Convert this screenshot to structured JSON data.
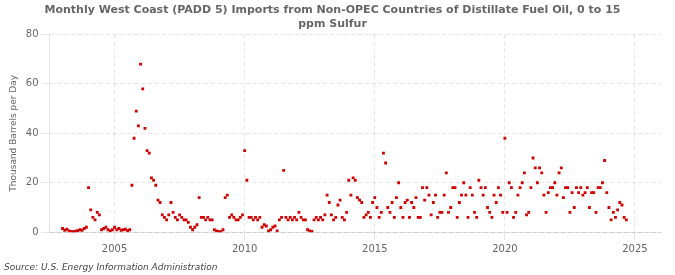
{
  "chart_data": {
    "type": "scatter",
    "title": "Monthly West Coast (PADD 5) Imports from Non-OPEC Countries of Distillate Fuel Oil, 0 to 15\nppm Sulfur",
    "y_label": "Thousand Barrels per Day",
    "source": "Source: U.S. Energy Information Administration",
    "color": "#cc0000",
    "marker": "square",
    "grid": true,
    "xlim": [
      2002.5,
      2026.0
    ],
    "xticks": [
      2005,
      2010,
      2015,
      2020,
      2025
    ],
    "ylim": [
      0,
      80
    ],
    "yticks": [
      0,
      20,
      40,
      60,
      80
    ],
    "x": [
      2003.0,
      2003.083,
      2003.167,
      2003.25,
      2003.333,
      2003.417,
      2003.5,
      2003.583,
      2003.667,
      2003.75,
      2003.833,
      2003.917,
      2004.0,
      2004.083,
      2004.167,
      2004.25,
      2004.333,
      2004.417,
      2004.5,
      2004.583,
      2004.667,
      2004.75,
      2004.833,
      2004.917,
      2005.0,
      2005.083,
      2005.167,
      2005.25,
      2005.333,
      2005.417,
      2005.5,
      2005.583,
      2005.667,
      2005.75,
      2005.833,
      2005.917,
      2006.0,
      2006.083,
      2006.167,
      2006.25,
      2006.333,
      2006.417,
      2006.5,
      2006.583,
      2006.667,
      2006.75,
      2006.833,
      2006.917,
      2007.0,
      2007.083,
      2007.167,
      2007.25,
      2007.333,
      2007.417,
      2007.5,
      2007.583,
      2007.667,
      2007.75,
      2007.833,
      2007.917,
      2008.0,
      2008.083,
      2008.167,
      2008.25,
      2008.333,
      2008.417,
      2008.5,
      2008.583,
      2008.667,
      2008.75,
      2008.833,
      2008.917,
      2009.0,
      2009.083,
      2009.167,
      2009.25,
      2009.333,
      2009.417,
      2009.5,
      2009.583,
      2009.667,
      2009.75,
      2009.833,
      2009.917,
      2010.0,
      2010.083,
      2010.167,
      2010.25,
      2010.333,
      2010.417,
      2010.5,
      2010.583,
      2010.667,
      2010.75,
      2010.833,
      2010.917,
      2011.0,
      2011.083,
      2011.167,
      2011.25,
      2011.333,
      2011.417,
      2011.5,
      2011.583,
      2011.667,
      2011.75,
      2011.833,
      2011.917,
      2012.0,
      2012.083,
      2012.167,
      2012.25,
      2012.333,
      2012.417,
      2012.5,
      2012.583,
      2012.667,
      2012.75,
      2012.833,
      2012.917,
      2013.0,
      2013.083,
      2013.167,
      2013.25,
      2013.333,
      2013.417,
      2013.5,
      2013.583,
      2013.667,
      2013.75,
      2013.833,
      2013.917,
      2014.0,
      2014.083,
      2014.167,
      2014.25,
      2014.333,
      2014.417,
      2014.5,
      2014.583,
      2014.667,
      2014.75,
      2014.833,
      2014.917,
      2015.0,
      2015.083,
      2015.167,
      2015.25,
      2015.333,
      2015.417,
      2015.5,
      2015.583,
      2015.667,
      2015.75,
      2015.833,
      2015.917,
      2016.0,
      2016.083,
      2016.167,
      2016.25,
      2016.333,
      2016.417,
      2016.5,
      2016.583,
      2016.667,
      2016.75,
      2016.833,
      2016.917,
      2017.0,
      2017.083,
      2017.167,
      2017.25,
      2017.333,
      2017.417,
      2017.5,
      2017.583,
      2017.667,
      2017.75,
      2017.833,
      2017.917,
      2018.0,
      2018.083,
      2018.167,
      2018.25,
      2018.333,
      2018.417,
      2018.5,
      2018.583,
      2018.667,
      2018.75,
      2018.833,
      2018.917,
      2019.0,
      2019.083,
      2019.167,
      2019.25,
      2019.333,
      2019.417,
      2019.5,
      2019.583,
      2019.667,
      2019.75,
      2019.833,
      2019.917,
      2020.0,
      2020.083,
      2020.167,
      2020.25,
      2020.333,
      2020.417,
      2020.5,
      2020.583,
      2020.667,
      2020.75,
      2020.833,
      2020.917,
      2021.0,
      2021.083,
      2021.167,
      2021.25,
      2021.333,
      2021.417,
      2021.5,
      2021.583,
      2021.667,
      2021.75,
      2021.833,
      2021.917,
      2022.0,
      2022.083,
      2022.167,
      2022.25,
      2022.333,
      2022.417,
      2022.5,
      2022.583,
      2022.667,
      2022.75,
      2022.833,
      2022.917,
      2023.0,
      2023.083,
      2023.167,
      2023.25,
      2023.333,
      2023.417,
      2023.5,
      2023.583,
      2023.667,
      2023.75,
      2023.833,
      2023.917,
      2024.0,
      2024.083,
      2024.167,
      2024.25,
      2024.333,
      2024.417,
      2024.5,
      2024.583,
      2024.667
    ],
    "values": [
      1.5,
      0.8,
      1.2,
      0.5,
      0.3,
      0.2,
      0.4,
      0.6,
      1.0,
      0.8,
      1.5,
      2.0,
      18.0,
      9.0,
      6.0,
      5.0,
      8.0,
      7.0,
      1.0,
      1.5,
      2.0,
      1.0,
      0.5,
      1.0,
      2.0,
      1.0,
      1.5,
      0.8,
      1.0,
      1.2,
      0.6,
      1.0,
      19.0,
      38.0,
      49.0,
      43.0,
      68.0,
      58.0,
      42.0,
      33.0,
      32.0,
      22.0,
      21.0,
      19.0,
      13.0,
      12.0,
      7.0,
      6.0,
      5.0,
      7.0,
      12.0,
      8.0,
      6.0,
      5.0,
      7.0,
      6.0,
      5.0,
      5.0,
      4.0,
      2.0,
      1.0,
      2.0,
      3.0,
      14.0,
      6.0,
      6.0,
      5.0,
      6.0,
      5.0,
      5.0,
      1.0,
      0.5,
      0.3,
      0.2,
      1.0,
      14.0,
      15.0,
      6.0,
      7.0,
      6.0,
      5.0,
      5.0,
      6.0,
      7.0,
      33.0,
      21.0,
      6.0,
      6.0,
      5.0,
      6.0,
      5.0,
      6.0,
      2.0,
      3.0,
      2.5,
      0.5,
      1.0,
      2.0,
      2.5,
      0.5,
      5.0,
      6.0,
      25.0,
      6.0,
      5.0,
      6.0,
      5.0,
      6.0,
      5.0,
      8.0,
      6.0,
      5.0,
      5.0,
      1.0,
      0.5,
      0.3,
      5.0,
      6.0,
      5.0,
      6.0,
      5.0,
      7.0,
      15.0,
      12.0,
      7.0,
      5.0,
      6.0,
      11.0,
      13.0,
      6.0,
      5.0,
      8.0,
      21.0,
      15.0,
      22.0,
      21.0,
      14.0,
      13.0,
      12.0,
      6.0,
      7.0,
      8.0,
      6.0,
      12.0,
      14.0,
      10.0,
      6.0,
      8.0,
      32.0,
      28.0,
      10.0,
      8.0,
      12.0,
      6.0,
      14.0,
      20.0,
      10.0,
      6.0,
      12.0,
      13.0,
      6.0,
      12.0,
      10.0,
      14.0,
      6.0,
      6.0,
      18.0,
      13.0,
      18.0,
      15.0,
      7.0,
      12.0,
      15.0,
      6.0,
      8.0,
      8.0,
      15.0,
      24.0,
      8.0,
      10.0,
      18.0,
      18.0,
      6.0,
      12.0,
      15.0,
      20.0,
      15.0,
      6.0,
      18.0,
      15.0,
      8.0,
      6.0,
      21.0,
      18.0,
      15.0,
      18.0,
      10.0,
      8.0,
      6.0,
      15.0,
      12.0,
      18.0,
      15.0,
      8.0,
      38.0,
      8.0,
      20.0,
      18.0,
      6.0,
      8.0,
      15.0,
      18.0,
      20.0,
      24.0,
      7.0,
      8.0,
      18.0,
      30.0,
      26.0,
      20.0,
      26.0,
      24.0,
      15.0,
      8.0,
      16.0,
      18.0,
      18.0,
      20.0,
      15.0,
      24.0,
      26.0,
      14.0,
      18.0,
      18.0,
      8.0,
      16.0,
      10.0,
      18.0,
      16.0,
      18.0,
      15.0,
      16.0,
      18.0,
      10.0,
      16.0,
      16.0,
      8.0,
      18.0,
      18.0,
      20.0,
      29.0,
      16.0,
      10.0,
      5.0,
      8.0,
      6.0,
      9.0,
      12.0,
      11.0,
      6.0,
      5.0
    ]
  }
}
